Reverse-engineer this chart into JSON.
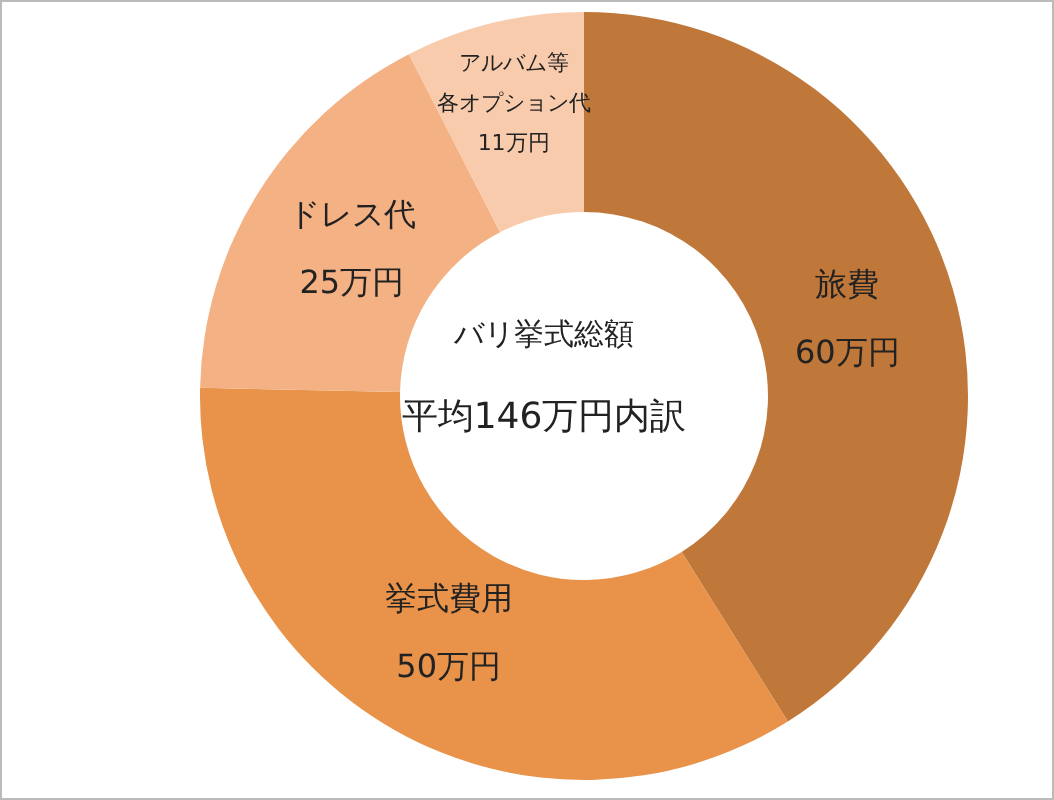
{
  "chart_data": {
    "type": "donut",
    "title": "バリ挙式総額",
    "subtitle": "平均146万円内訳",
    "categories": [
      "旅費",
      "挙式費用",
      "ドレス代",
      "アルバム等各オプション代"
    ],
    "values": [
      60,
      50,
      25,
      11
    ],
    "colors": [
      "#c0783a",
      "#e8924a",
      "#f4b183",
      "#f8cbad"
    ],
    "value_labels": [
      "60万円",
      "50万円",
      "25万円",
      "11万円"
    ]
  }
}
